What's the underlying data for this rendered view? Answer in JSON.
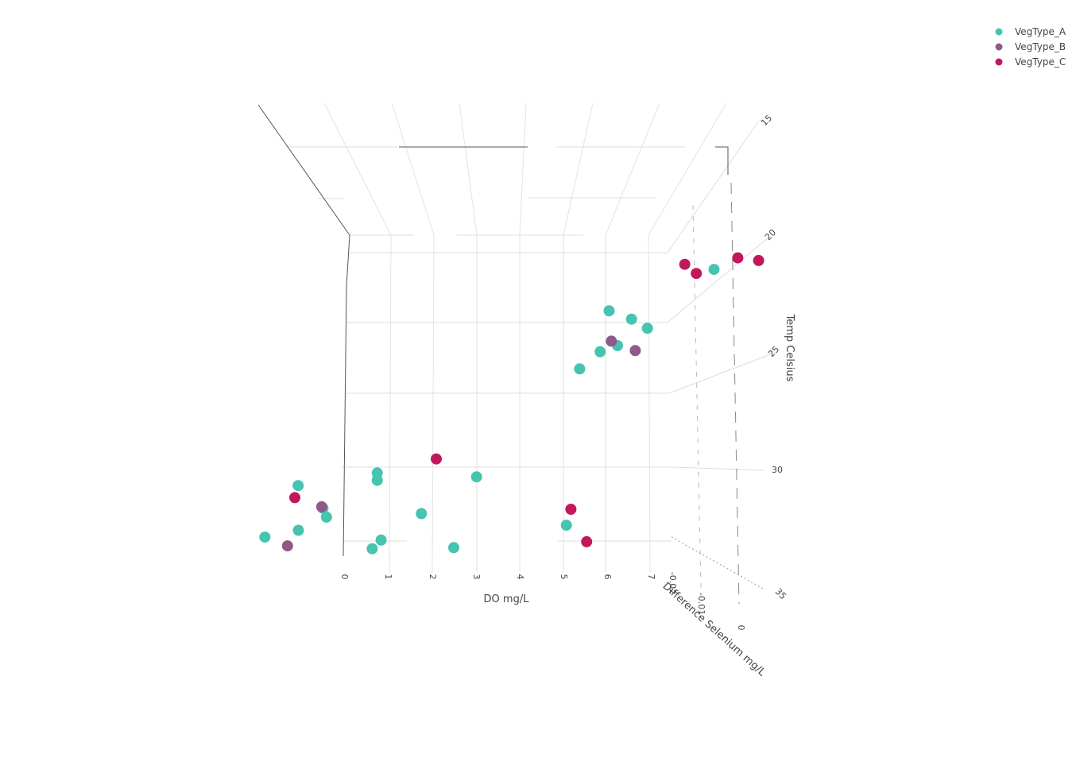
{
  "chart_data": {
    "type": "scatter",
    "subtype": "scatter3d",
    "x_axis": {
      "title": "DO mg/L",
      "ticks": [
        "0",
        "1",
        "2",
        "3",
        "4",
        "5",
        "6",
        "7"
      ]
    },
    "y_axis": {
      "title": "Difference Selenium mg/L",
      "ticks": [
        "-0.02",
        "-0.01",
        "0"
      ]
    },
    "z_axis": {
      "title": "Temp Celsius",
      "ticks": [
        "15",
        "20",
        "25",
        "30",
        "35"
      ]
    },
    "legend_position": "top-right",
    "series": [
      {
        "name": "VegType_A",
        "color": "#45c4b0",
        "points": [
          {
            "x": 5.8,
            "y": -0.001,
            "z": 16.5
          },
          {
            "x": 4.1,
            "y": -0.012,
            "z": 18.0
          },
          {
            "x": 4.7,
            "y": -0.01,
            "z": 18.8
          },
          {
            "x": 5.2,
            "y": -0.011,
            "z": 19.3
          },
          {
            "x": 4.8,
            "y": -0.015,
            "z": 20.0
          },
          {
            "x": 4.5,
            "y": -0.016,
            "z": 20.3
          },
          {
            "x": 4.3,
            "y": -0.019,
            "z": 21.1
          },
          {
            "x": 0.9,
            "y": -0.005,
            "z": 29.8
          },
          {
            "x": 1.0,
            "y": -0.005,
            "z": 30.3
          },
          {
            "x": 3.2,
            "y": -0.003,
            "z": 30.3
          },
          {
            "x": 6.1,
            "y": -0.018,
            "z": 31.8
          },
          {
            "x": 0.2,
            "y": -0.01,
            "z": 31.6
          },
          {
            "x": 0.4,
            "y": -0.01,
            "z": 32.2
          },
          {
            "x": 2.5,
            "y": -0.008,
            "z": 32.2
          },
          {
            "x": 0.0,
            "y": -0.015,
            "z": 32.5
          },
          {
            "x": 2.0,
            "y": -0.013,
            "z": 33.4
          },
          {
            "x": 1.9,
            "y": -0.012,
            "z": 34.1
          },
          {
            "x": 3.7,
            "y": -0.008,
            "z": 34.5
          },
          {
            "x": -0.7,
            "y": -0.008,
            "z": 30.3
          },
          {
            "x": -0.7,
            "y": -0.013,
            "z": 33.2
          }
        ]
      },
      {
        "name": "VegType_B",
        "color": "#8e5a8a",
        "points": [
          {
            "x": 4.6,
            "y": -0.015,
            "z": 19.7
          },
          {
            "x": 5.3,
            "y": -0.017,
            "z": 20.1
          },
          {
            "x": 0.15,
            "y": -0.01,
            "z": 31.5
          },
          {
            "x": 0.0,
            "y": -0.018,
            "z": 33.2
          }
        ]
      },
      {
        "name": "VegType_C",
        "color": "#c2185b",
        "points": [
          {
            "x": 5.1,
            "y": -0.004,
            "z": 15.8
          },
          {
            "x": 6.2,
            "y": -0.002,
            "z": 15.6
          },
          {
            "x": 6.7,
            "y": -0.001,
            "z": 15.9
          },
          {
            "x": 5.5,
            "y": -0.005,
            "z": 16.3
          },
          {
            "x": 2.1,
            "y": -0.008,
            "z": 28.5
          },
          {
            "x": 6.0,
            "y": -0.019,
            "z": 30.6
          },
          {
            "x": 6.8,
            "y": -0.019,
            "z": 32.8
          },
          {
            "x": -0.6,
            "y": -0.009,
            "z": 31.0
          }
        ]
      }
    ]
  }
}
